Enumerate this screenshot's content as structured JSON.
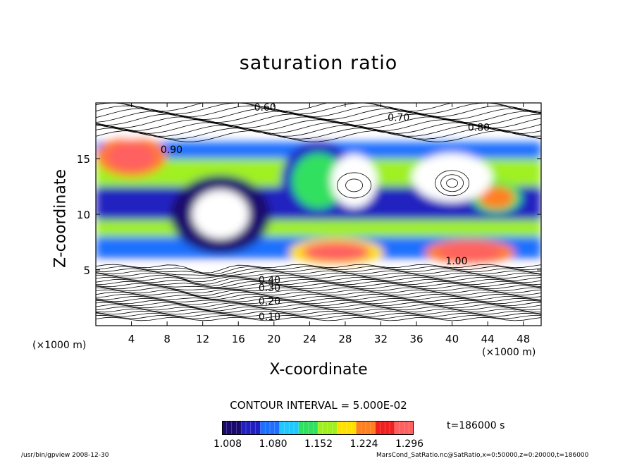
{
  "chart_data": {
    "type": "heatmap",
    "title": "saturation ratio",
    "xlabel": "X-coordinate",
    "ylabel": "Z-coordinate",
    "x_unit": "(×1000 m)",
    "y_unit": "(×1000 m)",
    "xlim": [
      0,
      50
    ],
    "ylim": [
      0,
      20
    ],
    "x_ticks": [
      4,
      8,
      12,
      16,
      20,
      24,
      28,
      32,
      36,
      40,
      44,
      48
    ],
    "y_ticks": [
      5,
      10,
      15
    ],
    "contour_interval_text": "CONTOUR INTERVAL = 5.000E-02",
    "contour_labels": [
      "0.10",
      "0.20",
      "0.30",
      "0.40",
      "0.60",
      "0.70",
      "0.80",
      "0.90",
      "1.00"
    ],
    "colorbar": {
      "ticks": [
        "1.008",
        "1.080",
        "1.152",
        "1.224",
        "1.296"
      ],
      "min": 1.008,
      "max": 1.296,
      "colors": [
        "#1a0a6e",
        "#2020c0",
        "#1e6fff",
        "#20c8ff",
        "#30e060",
        "#a0f020",
        "#ffe000",
        "#ff8020",
        "#f02020",
        "#ff6060"
      ]
    },
    "time_label": "t=186000 s",
    "heat_blobs": [
      {
        "x": 4,
        "z": 15.2,
        "rx": 2.8,
        "rz": 1.3,
        "level": 1.29
      },
      {
        "x": 27,
        "z": 6.6,
        "rx": 3.8,
        "rz": 0.9,
        "level": 1.28
      },
      {
        "x": 42,
        "z": 6.6,
        "rx": 3.6,
        "rz": 0.8,
        "level": 1.3
      },
      {
        "x": 45,
        "z": 11.5,
        "rx": 2.0,
        "rz": 1.0,
        "level": 1.22
      },
      {
        "x": 25,
        "z": 13,
        "rx": 3,
        "rz": 2.5,
        "level": 1.14
      },
      {
        "x": 14,
        "z": 10,
        "rx": 4,
        "rz": 2.5,
        "level": 1.03
      }
    ]
  },
  "footer": {
    "left": "/usr/bin/gpview   2008-12-30",
    "right": "MarsCond_SatRatio.nc@SatRatio,x=0:50000,z=0:20000,t=186000"
  }
}
